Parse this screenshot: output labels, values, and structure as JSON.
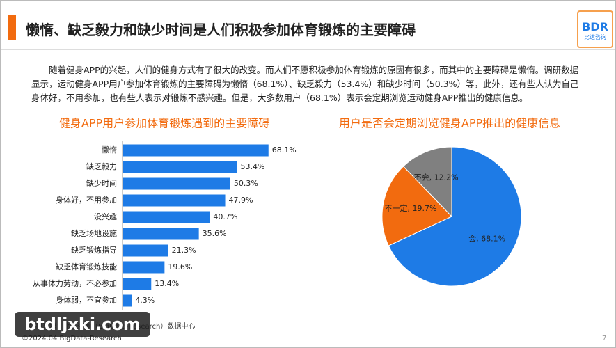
{
  "header": {
    "title": "懒惰、缺乏毅力和缺少时间是人们积极参加体育锻炼的主要障碍",
    "logo": "BDR",
    "logo_sub": "比达咨询"
  },
  "paragraph": "随着健身APP的兴起，人们的健身方式有了很大的改变。而人们不愿积极参加体育锻炼的原因有很多，而其中的主要障碍是懒惰。调研数据显示，运动健身APP用户参加体育锻炼的主要障碍为懒惰（68.1%）、缺乏毅力（53.4%）和缺少时间（50.3%）等，此外，还有些人认为自己身体好，不用参加，也有些人表示对锻炼不感兴趣。但是，大多数用户（68.1%）表示会定期浏览运动健身APP推出的健康信息。",
  "chart_data": [
    {
      "type": "bar",
      "orientation": "horizontal",
      "title": "健身APP用户参加体育锻炼遇到的主要障碍",
      "color": "#1e7be6",
      "categories": [
        "懒惰",
        "缺乏毅力",
        "缺少时间",
        "身体好，不用参加",
        "没兴趣",
        "缺乏场地设施",
        "缺乏锻炼指导",
        "缺乏体育锻炼技能",
        "从事体力劳动，不必参加",
        "身体弱，不宜参加"
      ],
      "values": [
        68.1,
        53.4,
        50.3,
        47.9,
        40.7,
        35.6,
        21.3,
        19.6,
        13.4,
        4.3
      ],
      "value_labels": [
        "68.1%",
        "53.4%",
        "50.3%",
        "47.9%",
        "40.7%",
        "35.6%",
        "21.3%",
        "19.6%",
        "13.4%",
        "4.3%"
      ]
    },
    {
      "type": "pie",
      "title": "用户是否会定期浏览健身APP推出的健康信息",
      "categories": [
        "会",
        "不一定",
        "不会"
      ],
      "values": [
        68.1,
        19.7,
        12.2
      ],
      "value_labels": [
        "会, 68.1%",
        "不一定, 19.7%",
        "不会, 12.2%"
      ],
      "colors": [
        "#1e7be6",
        "#f26b0f",
        "#808080"
      ]
    }
  ],
  "footer": {
    "source": "数据来源：比达咨询（BigData-Research）数据中心",
    "copyright": "©2024.04 BigData-Research",
    "page": "7"
  },
  "watermark": "btdljxki.com"
}
